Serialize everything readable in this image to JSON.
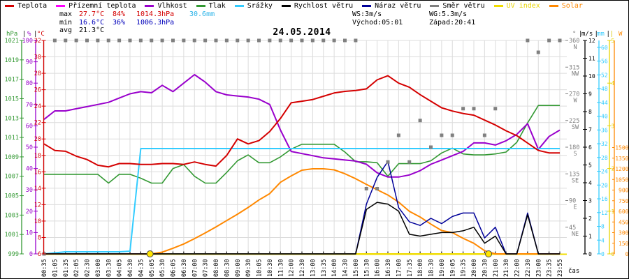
{
  "header": {
    "date": "24.05.2014",
    "legend": [
      {
        "label": "Teplota",
        "color": "#d40000"
      },
      {
        "label": "Přízemní teplota",
        "color": "#ff00ff"
      },
      {
        "label": "Vlhkost",
        "color": "#9900cc"
      },
      {
        "label": "Tlak",
        "color": "#339933"
      },
      {
        "label": "Srážky",
        "color": "#33ccff"
      },
      {
        "label": "Rychlost větru",
        "color": "#000000"
      },
      {
        "label": "Náraz větru",
        "color": "#000099"
      },
      {
        "label": "Směr větru",
        "color": "#808080"
      },
      {
        "label": "UV index",
        "color": "#f0dc00",
        "label_color": "#e8d400"
      },
      {
        "label": "Solar",
        "color": "#ff8800",
        "label_color": "#ff8800"
      }
    ],
    "stats": {
      "max_label": "max",
      "max_temp": "27.7°C",
      "max_hum": "84%",
      "max_pres": "1014.3hPa",
      "max_rain": "30.6mm",
      "min_label": "min",
      "min_temp": "16.6°C",
      "min_hum": "36%",
      "min_pres": "1006.3hPa",
      "avg_label": "avg",
      "avg_temp": "21.3°C",
      "ws": "WS:3m/s",
      "wg": "WG:5.3m/s",
      "sunrise": "Východ:05:01",
      "sunset": "Západ:20:41"
    }
  },
  "axes": {
    "left": [
      {
        "unit": "hPa",
        "color": "#339933",
        "scale": "pres",
        "ticks": [
          999,
          1001,
          1003,
          1005,
          1007,
          1009,
          1011,
          1013,
          1015,
          1017,
          1019,
          1021
        ]
      },
      {
        "unit": "%",
        "color": "#9900cc",
        "scale": "hum",
        "ticks": [
          0,
          10,
          20,
          30,
          40,
          50,
          60,
          70,
          80,
          90,
          100
        ]
      },
      {
        "unit": "°C",
        "color": "#d40000",
        "scale": "temp",
        "ticks": [
          6,
          8,
          10,
          12,
          14,
          16,
          18,
          20,
          22,
          24,
          26,
          28,
          30,
          32
        ]
      }
    ],
    "right_dir": {
      "unit": "°",
      "color": "#808080",
      "ticks": [
        {
          "v": 45,
          "label": "NE"
        },
        {
          "v": 90,
          "label": "E"
        },
        {
          "v": 135,
          "label": "SE"
        },
        {
          "v": 180,
          "label": "S"
        },
        {
          "v": 225,
          "label": "SW"
        },
        {
          "v": 270,
          "label": "W"
        },
        {
          "v": 315,
          "label": "NW"
        },
        {
          "v": 360,
          "label": "N"
        }
      ]
    },
    "right": [
      {
        "unit": "m/s",
        "color": "#000000",
        "scale": "wind",
        "ticks": [
          0,
          1,
          2,
          3,
          4,
          5,
          6,
          7,
          8,
          9,
          10,
          11,
          12
        ]
      },
      {
        "unit": "mm",
        "color": "#33ccff",
        "scale": "mm",
        "ticks": [
          0,
          4,
          8,
          12,
          16,
          20,
          24,
          28,
          32,
          36,
          40,
          44,
          48,
          52,
          56,
          60
        ]
      },
      {
        "unit": "",
        "color": "#e8d400",
        "scale": "uv",
        "ticks": [
          0,
          1,
          2,
          3,
          4,
          5
        ]
      },
      {
        "unit": "W",
        "color": "#ff8800",
        "scale": "w",
        "ticks": [
          0,
          150,
          300,
          450,
          600,
          750,
          900,
          1050,
          1200,
          1350,
          1500
        ]
      }
    ],
    "x_label": "čas"
  },
  "chart_data": {
    "type": "line",
    "title": "24.05.2014",
    "axis_ranges": {
      "temp": [
        6,
        32
      ],
      "hum": [
        0,
        100
      ],
      "pres": [
        999,
        1021
      ],
      "wind": [
        0,
        12
      ],
      "mm": [
        0,
        62
      ],
      "uv": [
        0,
        5
      ],
      "w": [
        0,
        3010
      ],
      "dir": [
        0,
        360
      ]
    },
    "sun_markers": {
      "sunrise": "05:01",
      "sunset": "20:41"
    },
    "x_labels": [
      "00:35",
      "01:05",
      "01:35",
      "02:05",
      "02:30",
      "03:00",
      "03:30",
      "04:05",
      "04:30",
      "04:35",
      "05:05",
      "05:30",
      "06:05",
      "06:30",
      "07:00",
      "07:30",
      "08:00",
      "08:30",
      "09:00",
      "09:30",
      "10:05",
      "10:30",
      "11:30",
      "12:00",
      "12:30",
      "13:00",
      "13:35",
      "14:00",
      "14:30",
      "15:00",
      "15:30",
      "16:00",
      "16:30",
      "17:00",
      "17:35",
      "18:00",
      "18:30",
      "19:00",
      "19:05",
      "19:35",
      "20:00",
      "20:30",
      "21:00",
      "21:30",
      "22:00",
      "22:30",
      "23:00",
      "23:35",
      "23:55"
    ],
    "series": [
      {
        "key": "pressure",
        "name": "Tlak",
        "unit": "hPa",
        "color": "#339933",
        "axis": "pres",
        "width": 1.6,
        "values": [
          1007.2,
          1007.2,
          1007.2,
          1007.2,
          1007.2,
          1007.2,
          1006.3,
          1007.2,
          1007.2,
          1006.8,
          1006.3,
          1006.3,
          1007.8,
          1008.2,
          1007.0,
          1006.3,
          1006.3,
          1007.4,
          1008.6,
          1009.2,
          1008.4,
          1008.4,
          1009.0,
          1009.8,
          1010.3,
          1010.3,
          1010.3,
          1010.3,
          1009.5,
          1008.5,
          1008.5,
          1008.4,
          1007.0,
          1008.3,
          1008.3,
          1008.3,
          1008.6,
          1009.4,
          1009.9,
          1009.3,
          1009.2,
          1009.2,
          1009.3,
          1009.5,
          1010.5,
          1012.5,
          1014.3,
          1014.3,
          1014.3
        ]
      },
      {
        "key": "humidity",
        "name": "Vlhkost",
        "unit": "%",
        "color": "#9900cc",
        "axis": "hum",
        "width": 2,
        "values": [
          63,
          67,
          67,
          68,
          69,
          70,
          71,
          73,
          75,
          76,
          75.5,
          79,
          76,
          80,
          84,
          80.5,
          76,
          74.5,
          74,
          73.5,
          72.5,
          70,
          58,
          48,
          47,
          46,
          45,
          44.5,
          44,
          43.5,
          42,
          38,
          36,
          36,
          37,
          39,
          42,
          44,
          46,
          48,
          52,
          52,
          51,
          53,
          56,
          61,
          49,
          55,
          58
        ]
      },
      {
        "key": "rain",
        "name": "Srážky",
        "unit": "mm",
        "color": "#33ccff",
        "axis": "mm",
        "width": 2,
        "values": [
          0,
          0.3,
          0.6,
          0.6,
          0.6,
          0.6,
          0.6,
          0.6,
          0.8,
          30.6,
          30.6,
          30.6,
          30.6,
          30.6,
          30.6,
          30.6,
          30.6,
          30.6,
          30.6,
          30.6,
          30.6,
          30.6,
          30.6,
          30.6,
          30.6,
          30.6,
          30.6,
          30.6,
          30.6,
          30.6,
          30.6,
          30.6,
          30.6,
          30.6,
          30.6,
          30.6,
          30.6,
          30.6,
          30.6,
          30.6,
          30.6,
          30.6,
          30.6,
          30.6,
          30.6,
          30.6,
          30.6,
          30.6,
          30.6
        ]
      },
      {
        "key": "uv-index",
        "name": "UV index",
        "unit": "UV",
        "color": "#f0dc00",
        "axis": "uv",
        "width": 2,
        "values": [
          0,
          0,
          0,
          0,
          0,
          0,
          0,
          0,
          0,
          0,
          0,
          0,
          0,
          0,
          0,
          0,
          0,
          0,
          0,
          0,
          0,
          0,
          0,
          0,
          0,
          0,
          0,
          0,
          0,
          0,
          0,
          0,
          0,
          0,
          0,
          0,
          0,
          0,
          0,
          0,
          0,
          0,
          0,
          0,
          0,
          0,
          0,
          0,
          0
        ]
      },
      {
        "key": "solar",
        "name": "Solar",
        "unit": "W",
        "color": "#ff8800",
        "axis": "w",
        "width": 2,
        "values": [
          0,
          0,
          0,
          0,
          0,
          0,
          0,
          0,
          0,
          0,
          0,
          25,
          80,
          140,
          215,
          295,
          380,
          470,
          560,
          655,
          760,
          850,
          1010,
          1100,
          1180,
          1200,
          1200,
          1185,
          1130,
          1060,
          980,
          905,
          830,
          730,
          600,
          520,
          420,
          330,
          300,
          220,
          150,
          45,
          0,
          0,
          0,
          0,
          0,
          0,
          0
        ]
      },
      {
        "key": "wind-gust",
        "name": "Náraz větru",
        "unit": "m/s",
        "color": "#000099",
        "axis": "wind",
        "width": 1.5,
        "values": [
          0,
          0,
          0,
          0,
          0,
          0,
          0,
          0,
          0,
          0,
          0,
          0,
          0,
          0,
          0,
          0,
          0,
          0,
          0,
          0,
          0,
          0,
          0,
          0,
          0,
          0,
          0,
          0,
          0,
          0,
          2.8,
          4.3,
          5.2,
          2.6,
          1.8,
          1.6,
          2.0,
          1.7,
          2.1,
          2.3,
          2.3,
          0.9,
          1.5,
          0,
          0,
          2.3,
          0,
          0,
          0
        ]
      },
      {
        "key": "wind-speed",
        "name": "Rychlost větru",
        "unit": "m/s",
        "color": "#000000",
        "axis": "wind",
        "width": 1.5,
        "values": [
          0,
          0,
          0,
          0,
          0,
          0,
          0,
          0,
          0,
          0,
          0,
          0,
          0,
          0,
          0,
          0,
          0,
          0,
          0,
          0,
          0,
          0,
          0,
          0,
          0,
          0,
          0,
          0,
          0,
          0,
          2.5,
          2.9,
          2.8,
          2.4,
          1.1,
          1.0,
          1.1,
          1.2,
          1.2,
          1.3,
          1.5,
          0.6,
          1.0,
          0,
          0,
          2.2,
          0,
          0,
          0
        ]
      },
      {
        "key": "temperature",
        "name": "Teplota",
        "unit": "°C",
        "color": "#d40000",
        "axis": "temp",
        "width": 2,
        "values": [
          19.4,
          18.6,
          18.5,
          17.9,
          17.5,
          16.8,
          16.6,
          17.0,
          17.0,
          16.9,
          16.9,
          17.0,
          17.0,
          16.9,
          17.2,
          16.9,
          16.7,
          18.0,
          20.0,
          19.4,
          19.8,
          20.9,
          22.5,
          24.4,
          24.6,
          24.8,
          25.2,
          25.6,
          25.8,
          25.9,
          26.1,
          27.2,
          27.7,
          26.8,
          26.3,
          25.4,
          24.6,
          23.8,
          23.4,
          23.1,
          22.9,
          22.3,
          21.7,
          21.0,
          20.4,
          19.5,
          18.6,
          18.3,
          18.3
        ]
      },
      {
        "key": "wind-direction",
        "name": "Směr větru",
        "unit": "°",
        "color": "#808080",
        "axis": "dir",
        "style": "squares",
        "values": [
          0,
          360,
          360,
          360,
          360,
          360,
          360,
          360,
          360,
          360,
          360,
          360,
          360,
          360,
          360,
          360,
          360,
          360,
          360,
          360,
          360,
          360,
          360,
          360,
          360,
          360,
          360,
          360,
          360,
          360,
          110,
          110,
          155,
          200,
          155,
          225,
          180,
          200,
          200,
          245,
          245,
          200,
          245,
          null,
          null,
          360,
          340,
          360,
          360
        ]
      }
    ]
  }
}
